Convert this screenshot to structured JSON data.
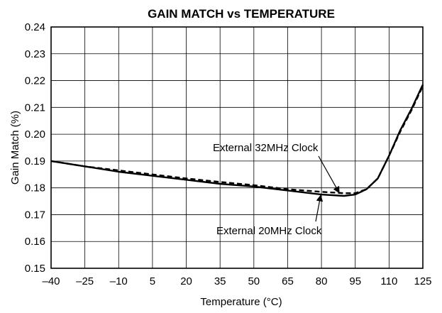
{
  "chart_data": {
    "type": "line",
    "title": "GAIN MATCH vs TEMPERATURE",
    "xlabel": "Temperature (°C)",
    "ylabel": "Gain Match (%)",
    "xlim": [
      -40,
      125
    ],
    "ylim": [
      0.15,
      0.24
    ],
    "x_ticks": [
      -40,
      -25,
      -10,
      5,
      20,
      35,
      50,
      65,
      80,
      95,
      110,
      125
    ],
    "x_tick_labels": [
      "–40",
      "–25",
      "–10",
      "5",
      "20",
      "35",
      "50",
      "65",
      "80",
      "95",
      "110",
      "125"
    ],
    "y_ticks": [
      0.15,
      0.16,
      0.17,
      0.18,
      0.19,
      0.2,
      0.21,
      0.22,
      0.23,
      0.24
    ],
    "y_tick_labels": [
      "0.15",
      "0.16",
      "0.17",
      "0.18",
      "0.19",
      "0.20",
      "0.21",
      "0.22",
      "0.23",
      "0.24"
    ],
    "grid": true,
    "series": [
      {
        "name": "External 32MHz Clock",
        "style": "dashed",
        "color": "#000000",
        "x": [
          -40,
          -25,
          -10,
          5,
          20,
          35,
          50,
          65,
          80,
          90,
          95,
          100,
          105,
          110,
          115,
          120,
          125
        ],
        "y": [
          0.19,
          0.188,
          0.1865,
          0.185,
          0.1835,
          0.1822,
          0.181,
          0.1795,
          0.1785,
          0.178,
          0.178,
          0.1795,
          0.1835,
          0.192,
          0.201,
          0.209,
          0.218
        ]
      },
      {
        "name": "External 20MHz Clock",
        "style": "solid",
        "color": "#000000",
        "x": [
          -40,
          -25,
          -10,
          5,
          20,
          35,
          50,
          65,
          80,
          90,
          95,
          100,
          105,
          110,
          115,
          120,
          125
        ],
        "y": [
          0.19,
          0.188,
          0.186,
          0.1845,
          0.183,
          0.1815,
          0.1805,
          0.179,
          0.1775,
          0.177,
          0.1775,
          0.1795,
          0.1835,
          0.192,
          0.2015,
          0.2095,
          0.2185
        ]
      }
    ],
    "annotations": [
      {
        "text": "External 32MHz Clock",
        "series": 0
      },
      {
        "text": "External 20MHz Clock",
        "series": 1
      }
    ]
  }
}
